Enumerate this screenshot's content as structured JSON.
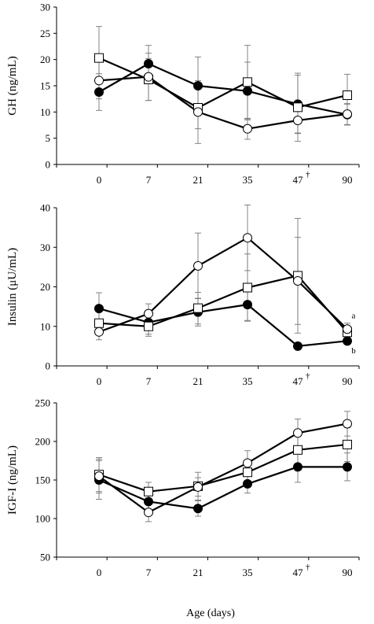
{
  "figure": {
    "xlabel": "Age (days)"
  },
  "chart_data": [
    {
      "type": "line",
      "ylabel": "GH (ng/mL)",
      "categories": [
        "0",
        "7",
        "21",
        "35",
        "47",
        "90"
      ],
      "category_marks": [
        "",
        "",
        "",
        "",
        "†",
        ""
      ],
      "ylim": [
        0,
        30
      ],
      "yticks": [
        0,
        5,
        10,
        15,
        20,
        25,
        30
      ],
      "series": [
        {
          "marker": "filled-circle",
          "values": [
            13.8,
            19.2,
            15.0,
            14.0,
            11.5,
            9.5
          ],
          "errors": [
            3.5,
            3.5,
            5.5,
            5.5,
            5.5,
            2.0
          ]
        },
        {
          "marker": "open-square",
          "values": [
            20.3,
            16.2,
            10.8,
            15.7,
            10.9,
            13.2
          ],
          "errors": [
            6.0,
            4.0,
            4.0,
            7.0,
            6.5,
            4.0
          ]
        },
        {
          "marker": "open-circle",
          "values": [
            16.0,
            16.7,
            10.0,
            6.8,
            8.4,
            9.6
          ],
          "errors": [
            3.5,
            4.5,
            6.0,
            2.0,
            2.5,
            2.0
          ]
        }
      ],
      "annotations": []
    },
    {
      "type": "line",
      "ylabel": "Insulin (μU/mL)",
      "categories": [
        "0",
        "7",
        "21",
        "35",
        "47",
        "90"
      ],
      "category_marks": [
        "",
        "",
        "",
        "",
        "†",
        ""
      ],
      "ylim": [
        0,
        40
      ],
      "yticks": [
        0,
        10,
        20,
        30,
        40
      ],
      "series": [
        {
          "marker": "filled-circle",
          "values": [
            14.5,
            11.0,
            13.6,
            15.5,
            5.0,
            6.3
          ],
          "errors": [
            4.0,
            3.0,
            3.5,
            4.0,
            0.8,
            0.8
          ]
        },
        {
          "marker": "open-square",
          "values": [
            10.8,
            10.0,
            14.6,
            19.8,
            22.8,
            8.5
          ],
          "errors": [
            3.0,
            2.5,
            4.0,
            8.5,
            14.5,
            1.0
          ]
        },
        {
          "marker": "open-circle",
          "values": [
            8.6,
            13.2,
            25.3,
            32.4,
            21.5,
            9.3
          ],
          "errors": [
            2.0,
            2.5,
            8.3,
            8.3,
            11.0,
            1.5
          ]
        }
      ],
      "annotations": [
        {
          "text": "a",
          "x": "90",
          "y": 12.0
        },
        {
          "text": "b",
          "x": "90",
          "y": 3.2
        }
      ]
    },
    {
      "type": "line",
      "ylabel": "IGF-I (ng/mL)",
      "categories": [
        "0",
        "7",
        "21",
        "35",
        "47",
        "90"
      ],
      "category_marks": [
        "",
        "",
        "",
        "",
        "†",
        ""
      ],
      "ylim": [
        50,
        250
      ],
      "yticks": [
        50,
        100,
        150,
        200,
        250
      ],
      "series": [
        {
          "marker": "filled-circle",
          "values": [
            150,
            122,
            113,
            145,
            167,
            167
          ],
          "errors": [
            25,
            12,
            10,
            12,
            20,
            18
          ]
        },
        {
          "marker": "open-square",
          "values": [
            157,
            135,
            142,
            160,
            189,
            196
          ],
          "errors": [
            22,
            12,
            18,
            15,
            22,
            22
          ]
        },
        {
          "marker": "open-circle",
          "values": [
            155,
            108,
            141,
            172,
            211,
            223
          ],
          "errors": [
            22,
            12,
            12,
            16,
            18,
            16
          ]
        }
      ],
      "annotations": []
    }
  ]
}
